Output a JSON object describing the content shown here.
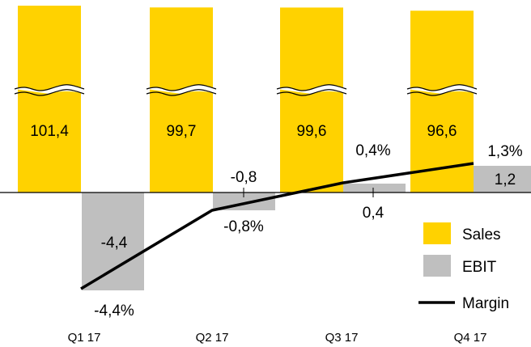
{
  "chart_data": {
    "type": "bar",
    "categories": [
      "Q1 17",
      "Q2 17",
      "Q3 17",
      "Q4 17"
    ],
    "series": [
      {
        "name": "Sales",
        "type": "bar",
        "values": [
          101.4,
          99.7,
          99.6,
          96.6
        ],
        "labels": [
          "101,4",
          "99,7",
          "99,6",
          "96,6"
        ],
        "axis_break": true
      },
      {
        "name": "EBIT",
        "type": "bar",
        "values": [
          -4.4,
          -0.8,
          0.4,
          1.2
        ],
        "labels": [
          "-4,4",
          "-0,8",
          "0,4",
          "1,2"
        ]
      },
      {
        "name": "Margin",
        "type": "line",
        "values": [
          -4.4,
          -0.8,
          0.4,
          1.3
        ],
        "labels": [
          "-4,4%",
          "-0,8%",
          "0,4%",
          "1,3%"
        ]
      }
    ],
    "legend": {
      "position": "bottom-right",
      "entries": [
        "Sales",
        "EBIT",
        "Margin"
      ]
    },
    "colors": {
      "sales": "#FFD200",
      "ebit": "#BFBFBF",
      "margin": "#000000",
      "break": "#ffffff"
    },
    "grid": false
  }
}
